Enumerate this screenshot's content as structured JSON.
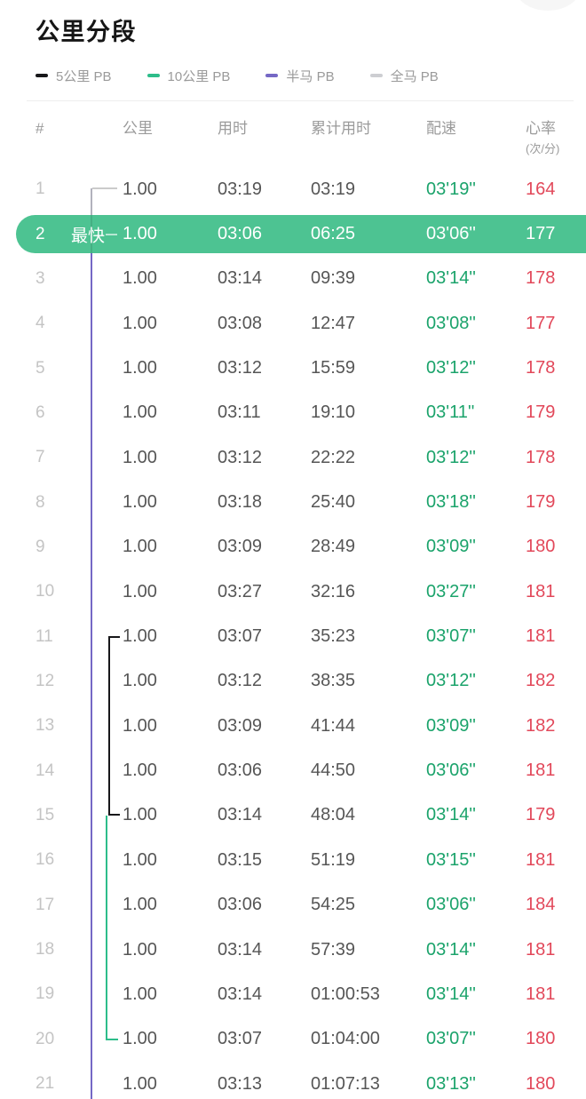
{
  "page": {
    "title": "公里分段"
  },
  "legend": {
    "items": [
      {
        "id": "5k",
        "label": "5公里 PB",
        "color": "#17171a"
      },
      {
        "id": "10k",
        "label": "10公里 PB",
        "color": "#2dbd8a"
      },
      {
        "id": "half",
        "label": "半马 PB",
        "color": "#7568c5"
      },
      {
        "id": "full",
        "label": "全马 PB",
        "color": "#cdced2"
      }
    ]
  },
  "table": {
    "headers": {
      "index": "#",
      "km": "公里",
      "time": "用时",
      "cumulative": "累计用时",
      "pace": "配速",
      "hr": "心率",
      "hr_unit": "(次/分)"
    },
    "fastest_label": "最快",
    "rows": [
      {
        "index": "1",
        "km": "1.00",
        "time": "03:19",
        "cumulative": "03:19",
        "pace": "03'19''",
        "hr": "164",
        "highlight": false
      },
      {
        "index": "2",
        "km": "1.00",
        "time": "03:06",
        "cumulative": "06:25",
        "pace": "03'06''",
        "hr": "177",
        "highlight": true
      },
      {
        "index": "3",
        "km": "1.00",
        "time": "03:14",
        "cumulative": "09:39",
        "pace": "03'14''",
        "hr": "178",
        "highlight": false
      },
      {
        "index": "4",
        "km": "1.00",
        "time": "03:08",
        "cumulative": "12:47",
        "pace": "03'08''",
        "hr": "177",
        "highlight": false
      },
      {
        "index": "5",
        "km": "1.00",
        "time": "03:12",
        "cumulative": "15:59",
        "pace": "03'12''",
        "hr": "178",
        "highlight": false
      },
      {
        "index": "6",
        "km": "1.00",
        "time": "03:11",
        "cumulative": "19:10",
        "pace": "03'11''",
        "hr": "179",
        "highlight": false
      },
      {
        "index": "7",
        "km": "1.00",
        "time": "03:12",
        "cumulative": "22:22",
        "pace": "03'12''",
        "hr": "178",
        "highlight": false
      },
      {
        "index": "8",
        "km": "1.00",
        "time": "03:18",
        "cumulative": "25:40",
        "pace": "03'18''",
        "hr": "179",
        "highlight": false
      },
      {
        "index": "9",
        "km": "1.00",
        "time": "03:09",
        "cumulative": "28:49",
        "pace": "03'09''",
        "hr": "180",
        "highlight": false
      },
      {
        "index": "10",
        "km": "1.00",
        "time": "03:27",
        "cumulative": "32:16",
        "pace": "03'27''",
        "hr": "181",
        "highlight": false
      },
      {
        "index": "11",
        "km": "1.00",
        "time": "03:07",
        "cumulative": "35:23",
        "pace": "03'07''",
        "hr": "181",
        "highlight": false
      },
      {
        "index": "12",
        "km": "1.00",
        "time": "03:12",
        "cumulative": "38:35",
        "pace": "03'12''",
        "hr": "182",
        "highlight": false
      },
      {
        "index": "13",
        "km": "1.00",
        "time": "03:09",
        "cumulative": "41:44",
        "pace": "03'09''",
        "hr": "182",
        "highlight": false
      },
      {
        "index": "14",
        "km": "1.00",
        "time": "03:06",
        "cumulative": "44:50",
        "pace": "03'06''",
        "hr": "181",
        "highlight": false
      },
      {
        "index": "15",
        "km": "1.00",
        "time": "03:14",
        "cumulative": "48:04",
        "pace": "03'14''",
        "hr": "179",
        "highlight": false
      },
      {
        "index": "16",
        "km": "1.00",
        "time": "03:15",
        "cumulative": "51:19",
        "pace": "03'15''",
        "hr": "181",
        "highlight": false
      },
      {
        "index": "17",
        "km": "1.00",
        "time": "03:06",
        "cumulative": "54:25",
        "pace": "03'06''",
        "hr": "184",
        "highlight": false
      },
      {
        "index": "18",
        "km": "1.00",
        "time": "03:14",
        "cumulative": "57:39",
        "pace": "03'14''",
        "hr": "181",
        "highlight": false
      },
      {
        "index": "19",
        "km": "1.00",
        "time": "03:14",
        "cumulative": "01:00:53",
        "pace": "03'14''",
        "hr": "181",
        "highlight": false
      },
      {
        "index": "20",
        "km": "1.00",
        "time": "03:07",
        "cumulative": "01:04:00",
        "pace": "03'07''",
        "hr": "180",
        "highlight": false
      },
      {
        "index": "21",
        "km": "1.00",
        "time": "03:13",
        "cumulative": "01:07:13",
        "pace": "03'13''",
        "hr": "180",
        "highlight": false
      }
    ]
  },
  "pb_segments": {
    "full_marathon_start_row": 1,
    "half_marathon_rows": "2-21+",
    "five_k_rows": "11-15",
    "ten_k_rows": "15-20"
  },
  "colors": {
    "highlight_row": "#4dc392",
    "pace_text": "#1ba36b",
    "heart_rate_text": "#e2485a",
    "half_marathon_line": "#7568c5",
    "five_k_line": "#17171a",
    "ten_k_line": "#2dbd8a",
    "full_marathon_line": "#cdced2"
  }
}
